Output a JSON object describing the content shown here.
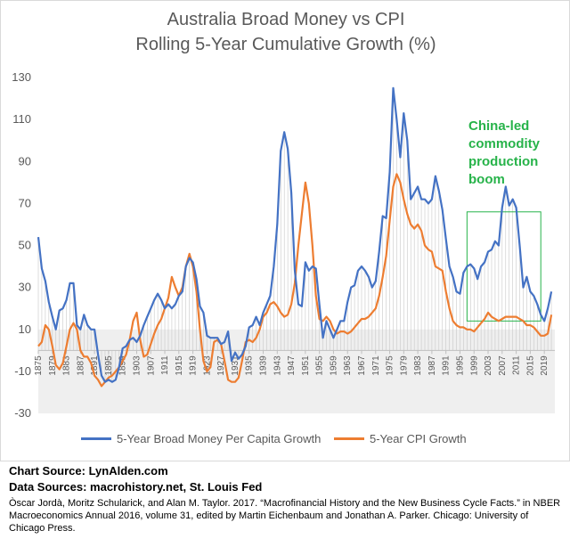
{
  "chart_data": {
    "type": "line",
    "title": "Australia Broad Money vs CPI",
    "subtitle": "Rolling 5-Year Cumulative Growth (%)",
    "ylim": [
      -30,
      130
    ],
    "yticks": [
      130,
      110,
      90,
      70,
      50,
      30,
      10,
      -10,
      -30
    ],
    "xlim": [
      1875,
      2022
    ],
    "xticks": [
      "1875",
      "1879",
      "1883",
      "1887",
      "1891",
      "1895",
      "1899",
      "1903",
      "1907",
      "1911",
      "1915",
      "1919",
      "1923",
      "1927",
      "1931",
      "1935",
      "1939",
      "1943",
      "1947",
      "1951",
      "1955",
      "1959",
      "1963",
      "1967",
      "1971",
      "1975",
      "1979",
      "1983",
      "1987",
      "1991",
      "1995",
      "1999",
      "2003",
      "2007",
      "2011",
      "2015",
      "2019"
    ],
    "grid": false,
    "legend_position": "bottom",
    "series": [
      {
        "name": "5-Year Broad Money Per Capita Growth",
        "color": "#4472c4",
        "points": [
          [
            1875,
            54
          ],
          [
            1876,
            39
          ],
          [
            1877,
            33
          ],
          [
            1878,
            23
          ],
          [
            1879,
            16
          ],
          [
            1880,
            10
          ],
          [
            1881,
            19
          ],
          [
            1882,
            20
          ],
          [
            1883,
            24
          ],
          [
            1884,
            32
          ],
          [
            1885,
            32
          ],
          [
            1886,
            12
          ],
          [
            1887,
            10
          ],
          [
            1888,
            17
          ],
          [
            1889,
            12
          ],
          [
            1890,
            10
          ],
          [
            1891,
            10
          ],
          [
            1892,
            -2
          ],
          [
            1893,
            -12
          ],
          [
            1894,
            -15
          ],
          [
            1895,
            -14
          ],
          [
            1896,
            -15
          ],
          [
            1897,
            -14
          ],
          [
            1898,
            -8
          ],
          [
            1899,
            1
          ],
          [
            1900,
            2
          ],
          [
            1901,
            5
          ],
          [
            1902,
            6
          ],
          [
            1903,
            4
          ],
          [
            1904,
            7
          ],
          [
            1905,
            12
          ],
          [
            1906,
            16
          ],
          [
            1907,
            20
          ],
          [
            1908,
            24
          ],
          [
            1909,
            27
          ],
          [
            1910,
            24
          ],
          [
            1911,
            20
          ],
          [
            1912,
            22
          ],
          [
            1913,
            20
          ],
          [
            1914,
            22
          ],
          [
            1915,
            26
          ],
          [
            1916,
            28
          ],
          [
            1917,
            40
          ],
          [
            1918,
            44
          ],
          [
            1919,
            42
          ],
          [
            1920,
            34
          ],
          [
            1921,
            21
          ],
          [
            1922,
            18
          ],
          [
            1923,
            7
          ],
          [
            1924,
            6
          ],
          [
            1925,
            6
          ],
          [
            1926,
            6
          ],
          [
            1927,
            3
          ],
          [
            1928,
            4
          ],
          [
            1929,
            9
          ],
          [
            1930,
            -5
          ],
          [
            1931,
            -1
          ],
          [
            1932,
            -4
          ],
          [
            1933,
            -2
          ],
          [
            1934,
            2
          ],
          [
            1935,
            11
          ],
          [
            1936,
            12
          ],
          [
            1937,
            16
          ],
          [
            1938,
            12
          ],
          [
            1939,
            18
          ],
          [
            1940,
            22
          ],
          [
            1941,
            26
          ],
          [
            1942,
            40
          ],
          [
            1943,
            60
          ],
          [
            1944,
            95
          ],
          [
            1945,
            104
          ],
          [
            1946,
            96
          ],
          [
            1947,
            75
          ],
          [
            1948,
            38
          ],
          [
            1949,
            22
          ],
          [
            1950,
            21
          ],
          [
            1951,
            42
          ],
          [
            1952,
            38
          ],
          [
            1953,
            40
          ],
          [
            1954,
            39
          ],
          [
            1955,
            22
          ],
          [
            1956,
            6
          ],
          [
            1957,
            14
          ],
          [
            1958,
            10
          ],
          [
            1959,
            6
          ],
          [
            1960,
            10
          ],
          [
            1961,
            14
          ],
          [
            1962,
            14
          ],
          [
            1963,
            23
          ],
          [
            1964,
            30
          ],
          [
            1965,
            31
          ],
          [
            1966,
            38
          ],
          [
            1967,
            40
          ],
          [
            1968,
            38
          ],
          [
            1969,
            35
          ],
          [
            1970,
            30
          ],
          [
            1971,
            33
          ],
          [
            1972,
            47
          ],
          [
            1973,
            64
          ],
          [
            1974,
            63
          ],
          [
            1975,
            85
          ],
          [
            1976,
            125
          ],
          [
            1977,
            110
          ],
          [
            1978,
            92
          ],
          [
            1979,
            113
          ],
          [
            1980,
            100
          ],
          [
            1981,
            72
          ],
          [
            1982,
            75
          ],
          [
            1983,
            78
          ],
          [
            1984,
            72
          ],
          [
            1985,
            72
          ],
          [
            1986,
            70
          ],
          [
            1987,
            72
          ],
          [
            1988,
            83
          ],
          [
            1989,
            76
          ],
          [
            1990,
            67
          ],
          [
            1991,
            53
          ],
          [
            1992,
            40
          ],
          [
            1993,
            35
          ],
          [
            1994,
            28
          ],
          [
            1995,
            27
          ],
          [
            1996,
            37
          ],
          [
            1997,
            40
          ],
          [
            1998,
            41
          ],
          [
            1999,
            39
          ],
          [
            2000,
            34
          ],
          [
            2001,
            40
          ],
          [
            2002,
            42
          ],
          [
            2003,
            47
          ],
          [
            2004,
            48
          ],
          [
            2005,
            52
          ],
          [
            2006,
            50
          ],
          [
            2007,
            68
          ],
          [
            2008,
            78
          ],
          [
            2009,
            69
          ],
          [
            2010,
            72
          ],
          [
            2011,
            68
          ],
          [
            2012,
            50
          ],
          [
            2013,
            30
          ],
          [
            2014,
            35
          ],
          [
            2015,
            28
          ],
          [
            2016,
            26
          ],
          [
            2017,
            22
          ],
          [
            2018,
            17
          ],
          [
            2019,
            14
          ],
          [
            2020,
            20
          ],
          [
            2021,
            28
          ]
        ]
      },
      {
        "name": "5-Year CPI Growth",
        "color": "#ed7d31",
        "points": [
          [
            1875,
            2
          ],
          [
            1876,
            4
          ],
          [
            1877,
            12
          ],
          [
            1878,
            10
          ],
          [
            1879,
            2
          ],
          [
            1880,
            -7
          ],
          [
            1881,
            -9
          ],
          [
            1882,
            -6
          ],
          [
            1883,
            2
          ],
          [
            1884,
            10
          ],
          [
            1885,
            13
          ],
          [
            1886,
            10
          ],
          [
            1887,
            0
          ],
          [
            1888,
            -3
          ],
          [
            1889,
            -3
          ],
          [
            1890,
            -6
          ],
          [
            1891,
            -12
          ],
          [
            1892,
            -14
          ],
          [
            1893,
            -17
          ],
          [
            1894,
            -15
          ],
          [
            1895,
            -13
          ],
          [
            1896,
            -12
          ],
          [
            1897,
            -10
          ],
          [
            1898,
            -8
          ],
          [
            1899,
            -5
          ],
          [
            1900,
            -2
          ],
          [
            1901,
            5
          ],
          [
            1902,
            14
          ],
          [
            1903,
            18
          ],
          [
            1904,
            5
          ],
          [
            1905,
            -3
          ],
          [
            1906,
            -2
          ],
          [
            1907,
            3
          ],
          [
            1908,
            8
          ],
          [
            1909,
            12
          ],
          [
            1910,
            15
          ],
          [
            1911,
            20
          ],
          [
            1912,
            25
          ],
          [
            1913,
            35
          ],
          [
            1914,
            30
          ],
          [
            1915,
            26
          ],
          [
            1916,
            30
          ],
          [
            1917,
            40
          ],
          [
            1918,
            46
          ],
          [
            1919,
            40
          ],
          [
            1920,
            28
          ],
          [
            1921,
            10
          ],
          [
            1922,
            -5
          ],
          [
            1923,
            -10
          ],
          [
            1924,
            -8
          ],
          [
            1925,
            4
          ],
          [
            1926,
            5
          ],
          [
            1927,
            3
          ],
          [
            1928,
            -5
          ],
          [
            1929,
            -14
          ],
          [
            1930,
            -15
          ],
          [
            1931,
            -15
          ],
          [
            1932,
            -13
          ],
          [
            1933,
            -5
          ],
          [
            1934,
            4
          ],
          [
            1935,
            5
          ],
          [
            1936,
            4
          ],
          [
            1937,
            6
          ],
          [
            1938,
            10
          ],
          [
            1939,
            16
          ],
          [
            1940,
            18
          ],
          [
            1941,
            22
          ],
          [
            1942,
            23
          ],
          [
            1943,
            21
          ],
          [
            1944,
            18
          ],
          [
            1945,
            16
          ],
          [
            1946,
            17
          ],
          [
            1947,
            22
          ],
          [
            1948,
            32
          ],
          [
            1949,
            50
          ],
          [
            1950,
            65
          ],
          [
            1951,
            80
          ],
          [
            1952,
            70
          ],
          [
            1953,
            50
          ],
          [
            1954,
            26
          ],
          [
            1955,
            15
          ],
          [
            1956,
            14
          ],
          [
            1957,
            16
          ],
          [
            1958,
            14
          ],
          [
            1959,
            10
          ],
          [
            1960,
            8
          ],
          [
            1961,
            9
          ],
          [
            1962,
            9
          ],
          [
            1963,
            8
          ],
          [
            1964,
            9
          ],
          [
            1965,
            11
          ],
          [
            1966,
            13
          ],
          [
            1967,
            15
          ],
          [
            1968,
            15
          ],
          [
            1969,
            16
          ],
          [
            1970,
            18
          ],
          [
            1971,
            20
          ],
          [
            1972,
            26
          ],
          [
            1973,
            35
          ],
          [
            1974,
            45
          ],
          [
            1975,
            62
          ],
          [
            1976,
            78
          ],
          [
            1977,
            84
          ],
          [
            1978,
            80
          ],
          [
            1979,
            72
          ],
          [
            1980,
            65
          ],
          [
            1981,
            60
          ],
          [
            1982,
            58
          ],
          [
            1983,
            60
          ],
          [
            1984,
            57
          ],
          [
            1985,
            50
          ],
          [
            1986,
            48
          ],
          [
            1987,
            47
          ],
          [
            1988,
            40
          ],
          [
            1989,
            39
          ],
          [
            1990,
            38
          ],
          [
            1991,
            28
          ],
          [
            1992,
            20
          ],
          [
            1993,
            14
          ],
          [
            1994,
            12
          ],
          [
            1995,
            11
          ],
          [
            1996,
            11
          ],
          [
            1997,
            10
          ],
          [
            1998,
            10
          ],
          [
            1999,
            9
          ],
          [
            2000,
            11
          ],
          [
            2001,
            13
          ],
          [
            2002,
            15
          ],
          [
            2003,
            18
          ],
          [
            2004,
            16
          ],
          [
            2005,
            15
          ],
          [
            2006,
            14
          ],
          [
            2007,
            15
          ],
          [
            2008,
            16
          ],
          [
            2009,
            16
          ],
          [
            2010,
            16
          ],
          [
            2011,
            16
          ],
          [
            2012,
            15
          ],
          [
            2013,
            14
          ],
          [
            2014,
            12
          ],
          [
            2015,
            12
          ],
          [
            2016,
            11
          ],
          [
            2017,
            9
          ],
          [
            2018,
            7
          ],
          [
            2019,
            7
          ],
          [
            2020,
            8
          ],
          [
            2021,
            17
          ]
        ]
      }
    ],
    "annotation": {
      "text": [
        "China-led",
        "commodity",
        "production",
        "boom"
      ],
      "color": "#27b34a",
      "box_x_range": [
        1997,
        2018
      ],
      "box_y_range": [
        14,
        66
      ]
    }
  },
  "footer": {
    "chart_source": "Chart Source: LynAlden.com",
    "data_sources": "Data Sources: macrohistory.net, St. Louis Fed",
    "citation": "Òscar Jordà, Moritz Schularick, and Alan M. Taylor. 2017. “Macrofinancial History and the New Business Cycle Facts.” in NBER Macroeconomics Annual 2016, volume 31, edited by Martin Eichenbaum and Jonathan A. Parker. Chicago: University of Chicago Press."
  }
}
